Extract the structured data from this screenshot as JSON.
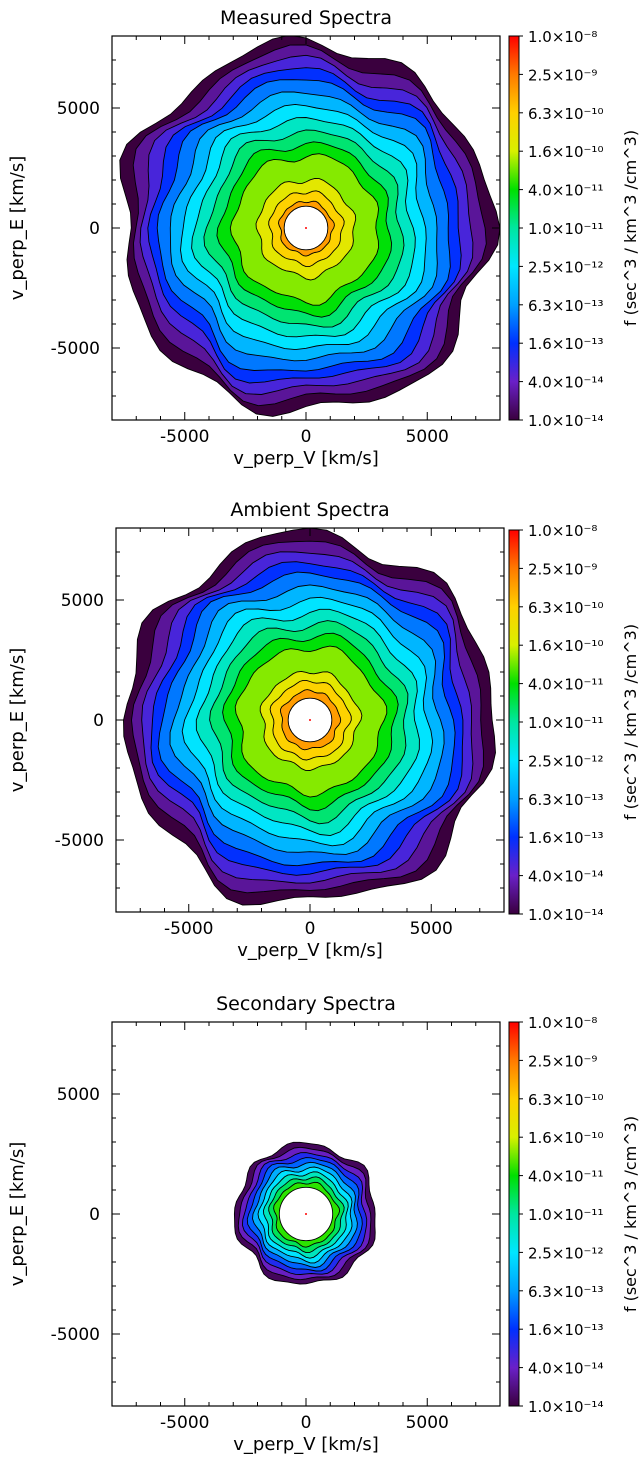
{
  "colorbar": {
    "label": "f (sec^3 / km^3 /cm^3)",
    "ticks": [
      "1.0×10⁻⁸",
      "2.5×10⁻⁹",
      "6.3×10⁻¹⁰",
      "1.6×10⁻¹⁰",
      "4.0×10⁻¹¹",
      "1.0×10⁻¹¹",
      "2.5×10⁻¹²",
      "6.3×10⁻¹³",
      "1.6×10⁻¹³",
      "4.0×10⁻¹⁴",
      "1.0×10⁻¹⁴"
    ],
    "colors": [
      "#ff0000",
      "#ff7a00",
      "#ffd000",
      "#d8f000",
      "#00e000",
      "#00e6a0",
      "#00e6ff",
      "#00a0ff",
      "#0030ff",
      "#6a20c8",
      "#3a003e"
    ]
  },
  "chart_data": [
    {
      "type": "heatmap",
      "title": "Measured Spectra",
      "xlabel": "v_perp_V [km/s]",
      "ylabel": "v_perp_E [km/s]",
      "xlim": [
        -8000,
        8000
      ],
      "ylim": [
        -8000,
        8000
      ],
      "xticks": [
        "-5000",
        "0",
        "5000"
      ],
      "yticks": [
        "5000",
        "0",
        "-5000"
      ],
      "contour_radii_kms": [
        7600,
        7200,
        6800,
        6400,
        6000,
        5500,
        5000,
        4500,
        4000,
        3500,
        3000,
        2000,
        1500,
        1100
      ],
      "hole_radius_kms": 900,
      "zmin": 1e-14,
      "zmax": 1e-08,
      "scale": "log"
    },
    {
      "type": "heatmap",
      "title": "Ambient Spectra",
      "xlabel": "v_perp_V [km/s]",
      "ylabel": "v_perp_E [km/s]",
      "xlim": [
        -8000,
        8000
      ],
      "ylim": [
        -8000,
        8000
      ],
      "xticks": [
        "-5000",
        "0",
        "5000"
      ],
      "yticks": [
        "5000",
        "0",
        "-5000"
      ],
      "contour_radii_kms": [
        7600,
        7200,
        6800,
        6400,
        6000,
        5500,
        5000,
        4500,
        4000,
        3500,
        3000,
        2000,
        1600,
        1200
      ],
      "hole_radius_kms": 900,
      "zmin": 1e-14,
      "zmax": 1e-08,
      "scale": "log"
    },
    {
      "type": "heatmap",
      "title": "Secondary Spectra",
      "xlabel": "v_perp_V [km/s]",
      "ylabel": "v_perp_E [km/s]",
      "xlim": [
        -8000,
        8000
      ],
      "ylim": [
        -8000,
        8000
      ],
      "xticks": [
        "-5000",
        "0",
        "5000"
      ],
      "yticks": [
        "5000",
        "0",
        "-5000"
      ],
      "contour_radii_kms": [
        2900,
        2700,
        2500,
        2300,
        2100,
        1900,
        1700,
        1500,
        1300
      ],
      "hole_radius_kms": 1100,
      "zmin": 1e-14,
      "zmax": 1e-08,
      "scale": "log"
    }
  ]
}
